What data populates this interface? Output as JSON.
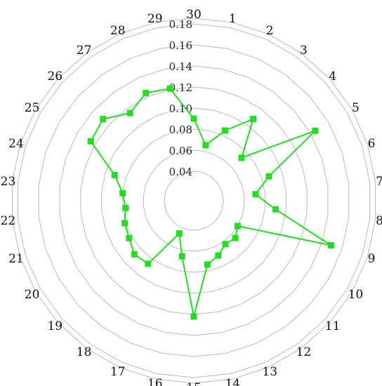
{
  "chart_data": {
    "type": "radar",
    "categories": [
      "1",
      "2",
      "3",
      "4",
      "5",
      "6",
      "7",
      "8",
      "9",
      "10",
      "11",
      "12",
      "13",
      "14",
      "15",
      "16",
      "17",
      "18",
      "19",
      "20",
      "21",
      "22",
      "23",
      "24",
      "25",
      "26",
      "27",
      "28",
      "29",
      "30"
    ],
    "radial_ticks": [
      "0.04",
      "0.06",
      "0.08",
      "0.10",
      "0.12",
      "0.14",
      "0.16",
      "0.18"
    ],
    "rlim": [
      0.02,
      0.18
    ],
    "grid": true,
    "series": [
      {
        "values": [
          0.066,
          0.085,
          0.108,
          0.073,
          0.145,
          0.087,
          0.071,
          0.09,
          0.149,
          0.06,
          0.065,
          0.063,
          0.069,
          0.074,
          0.122,
          0.066,
          0.046,
          0.086,
          0.088,
          0.083,
          0.081,
          0.077,
          0.08,
          0.091,
          0.125,
          0.128,
          0.115,
          0.124,
          0.121,
          0.09
        ],
        "color": "#22dd22"
      }
    ]
  }
}
